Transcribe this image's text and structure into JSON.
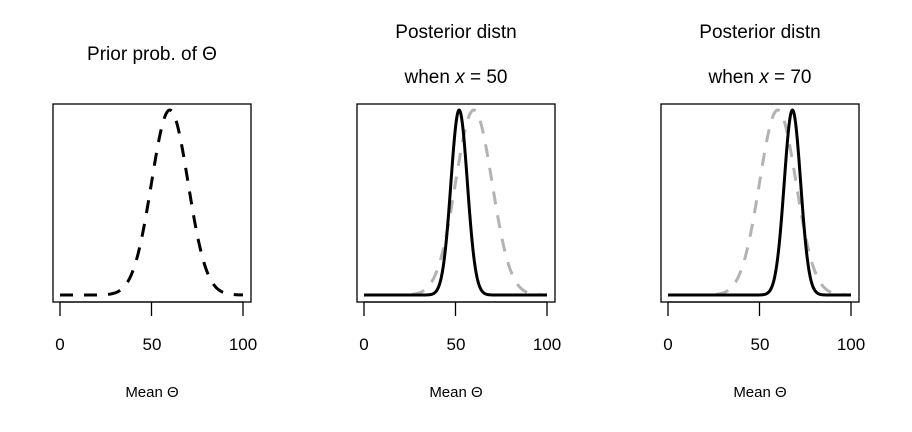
{
  "chart_data": [
    {
      "type": "line",
      "title": "Prior prob. of Θ",
      "title_line2": "",
      "xlabel": "Mean Θ",
      "ylabel": "",
      "xlim": [
        0,
        100
      ],
      "xticks": [
        "0",
        "50",
        "100"
      ],
      "yticks": [],
      "grid": false,
      "series": [
        {
          "distribution": "normal",
          "mean": 60,
          "sd": 10,
          "color": "#000000",
          "style": "dashed",
          "relative_peak": 1
        }
      ]
    },
    {
      "type": "line",
      "title": "Posterior distn",
      "title_line2_prefix": "when ",
      "title_line2_var": "x",
      "title_line2_suffix": " = 50",
      "xlabel": "Mean Θ",
      "ylabel": "",
      "xlim": [
        0,
        100
      ],
      "xticks": [
        "0",
        "50",
        "100"
      ],
      "yticks": [],
      "grid": false,
      "series": [
        {
          "distribution": "normal",
          "mean": 60,
          "sd": 10,
          "color": "#b3b3b3",
          "style": "dashed",
          "relative_peak": 1
        },
        {
          "distribution": "normal",
          "mean": 52,
          "sd": 4.5,
          "color": "#000000",
          "style": "solid",
          "relative_peak": 1
        }
      ]
    },
    {
      "type": "line",
      "title": "Posterior distn",
      "title_line2_prefix": "when ",
      "title_line2_var": "x",
      "title_line2_suffix": " = 70",
      "xlabel": "Mean Θ",
      "ylabel": "",
      "xlim": [
        0,
        100
      ],
      "xticks": [
        "0",
        "50",
        "100"
      ],
      "yticks": [],
      "grid": false,
      "series": [
        {
          "distribution": "normal",
          "mean": 60,
          "sd": 10,
          "color": "#b3b3b3",
          "style": "dashed",
          "relative_peak": 1
        },
        {
          "distribution": "normal",
          "mean": 68,
          "sd": 4.5,
          "color": "#000000",
          "style": "solid",
          "relative_peak": 1
        }
      ]
    }
  ]
}
